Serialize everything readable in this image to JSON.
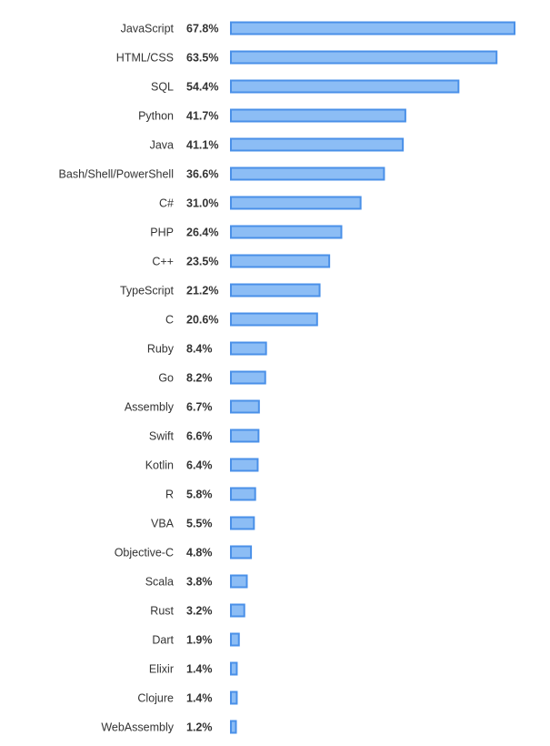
{
  "chart_data": {
    "type": "bar",
    "orientation": "horizontal",
    "title": "",
    "xlabel": "",
    "ylabel": "",
    "xlim": [
      0,
      67.8
    ],
    "grid": false,
    "legend": "none",
    "value_suffix": "%",
    "categories": [
      "JavaScript",
      "HTML/CSS",
      "SQL",
      "Python",
      "Java",
      "Bash/Shell/PowerShell",
      "C#",
      "PHP",
      "C++",
      "TypeScript",
      "C",
      "Ruby",
      "Go",
      "Assembly",
      "Swift",
      "Kotlin",
      "R",
      "VBA",
      "Objective-C",
      "Scala",
      "Rust",
      "Dart",
      "Elixir",
      "Clojure",
      "WebAssembly"
    ],
    "values": [
      67.8,
      63.5,
      54.4,
      41.7,
      41.1,
      36.6,
      31.0,
      26.4,
      23.5,
      21.2,
      20.6,
      8.4,
      8.2,
      6.7,
      6.6,
      6.4,
      5.8,
      5.5,
      4.8,
      3.8,
      3.2,
      1.9,
      1.4,
      1.4,
      1.2
    ],
    "value_labels": [
      "67.8%",
      "63.5%",
      "54.4%",
      "41.7%",
      "41.1%",
      "36.6%",
      "31.0%",
      "26.4%",
      "23.5%",
      "21.2%",
      "20.6%",
      "8.4%",
      "8.2%",
      "6.7%",
      "6.6%",
      "6.4%",
      "5.8%",
      "5.5%",
      "4.8%",
      "3.8%",
      "3.2%",
      "1.9%",
      "1.4%",
      "1.4%",
      "1.2%"
    ]
  },
  "colors": {
    "bar_fill": "#8cbdf5",
    "bar_stroke": "#4a90e8",
    "text": "#333333",
    "background": "#ffffff"
  }
}
